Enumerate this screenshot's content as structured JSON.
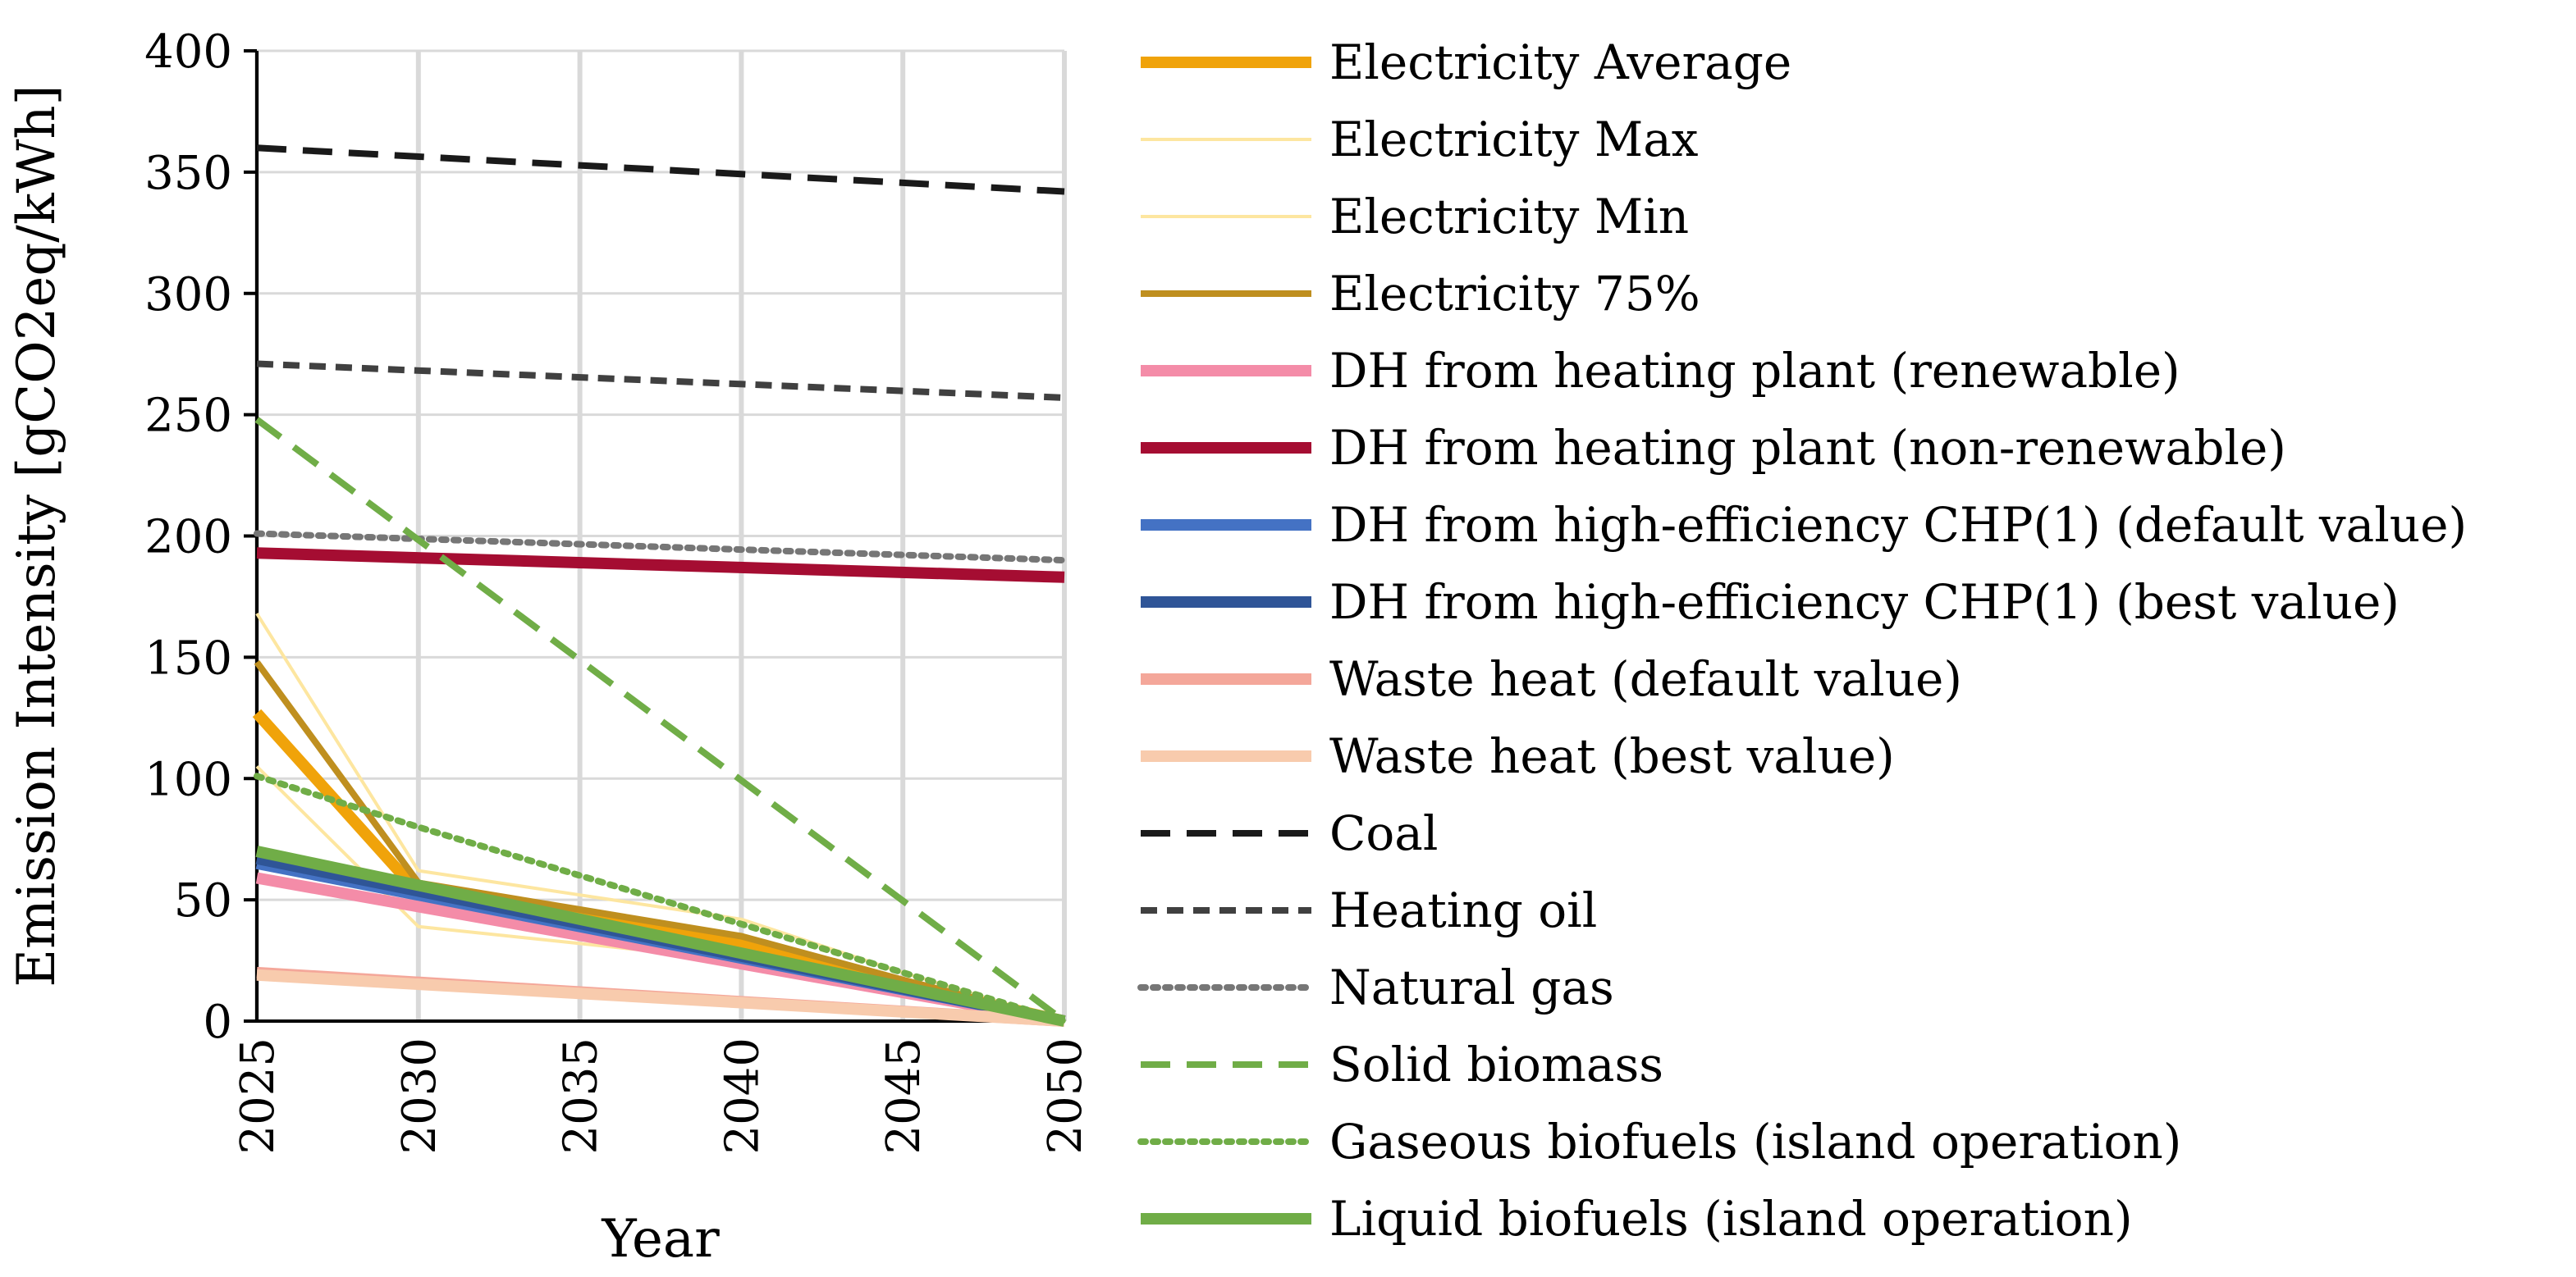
{
  "chart_data": {
    "type": "line",
    "title": "",
    "xlabel": "Year",
    "ylabel": "Emission Intensity [gCO2eq/kWh]",
    "x": [
      2025,
      2030,
      2035,
      2040,
      2045,
      2050
    ],
    "x_tick_labels": [
      "2025",
      "2030",
      "2035",
      "2040",
      "2045",
      "2050"
    ],
    "y_ticks": [
      0,
      50,
      100,
      150,
      200,
      250,
      300,
      350,
      400
    ],
    "y_tick_labels": [
      "0",
      "50",
      "100",
      "150",
      "200",
      "250",
      "300",
      "350",
      "400"
    ],
    "ylim": [
      0,
      400
    ],
    "xlim": [
      2025,
      2050
    ],
    "grid": "vertical and horizontal",
    "legend_position": "right",
    "series": [
      {
        "name": "Electricity Average",
        "color": "#F0A30A",
        "style": "solid",
        "weight": "thick",
        "points": [
          [
            2025,
            127
          ],
          [
            2030,
            53
          ],
          [
            2035,
            43
          ],
          [
            2040,
            32
          ],
          [
            2045,
            15
          ],
          [
            2050,
            0
          ]
        ]
      },
      {
        "name": "Electricity Max",
        "color": "#FDE6A0",
        "style": "solid",
        "weight": "thin",
        "points": [
          [
            2025,
            168
          ],
          [
            2030,
            62
          ],
          [
            2035,
            52
          ],
          [
            2040,
            42
          ],
          [
            2045,
            20
          ],
          [
            2050,
            0
          ]
        ]
      },
      {
        "name": "Electricity Min",
        "color": "#FDE6A0",
        "style": "solid",
        "weight": "thin",
        "points": [
          [
            2025,
            105
          ],
          [
            2030,
            39
          ],
          [
            2035,
            32
          ],
          [
            2040,
            25
          ],
          [
            2045,
            12
          ],
          [
            2050,
            0
          ]
        ]
      },
      {
        "name": "Electricity 75%",
        "color": "#BF8F1F",
        "style": "solid",
        "weight": "medium",
        "points": [
          [
            2025,
            148
          ],
          [
            2030,
            57
          ],
          [
            2035,
            46
          ],
          [
            2040,
            35
          ],
          [
            2045,
            17
          ],
          [
            2050,
            0
          ]
        ]
      },
      {
        "name": "DH from heating plant (renewable)",
        "color": "#F48CA8",
        "style": "solid",
        "weight": "thick",
        "points": [
          [
            2025,
            59
          ],
          [
            2050,
            0
          ]
        ]
      },
      {
        "name": "DH from heating plant (non-renewable)",
        "color": "#A50D32",
        "style": "solid",
        "weight": "thick",
        "points": [
          [
            2025,
            193
          ],
          [
            2050,
            183
          ]
        ]
      },
      {
        "name": "DH from high-efficiency CHP(1) (default value)",
        "color": "#4472C4",
        "style": "solid",
        "weight": "thick",
        "points": [
          [
            2025,
            65
          ],
          [
            2050,
            0
          ]
        ]
      },
      {
        "name": "DH from high-efficiency CHP(1) (best value)",
        "color": "#2F5597",
        "style": "solid",
        "weight": "thick",
        "points": [
          [
            2025,
            67
          ],
          [
            2050,
            0
          ]
        ]
      },
      {
        "name": "Waste heat (default value)",
        "color": "#F4A79A",
        "style": "solid",
        "weight": "thick",
        "points": [
          [
            2025,
            20
          ],
          [
            2050,
            0
          ]
        ]
      },
      {
        "name": "Waste heat (best value)",
        "color": "#F8CBAD",
        "style": "solid",
        "weight": "thick",
        "points": [
          [
            2025,
            19
          ],
          [
            2050,
            0
          ]
        ]
      },
      {
        "name": "Coal",
        "color": "#1A1A1A",
        "style": "long-dash",
        "weight": "medium",
        "points": [
          [
            2025,
            360
          ],
          [
            2050,
            342
          ]
        ]
      },
      {
        "name": "Heating oil",
        "color": "#404040",
        "style": "dash",
        "weight": "medium",
        "points": [
          [
            2025,
            271
          ],
          [
            2050,
            257
          ]
        ]
      },
      {
        "name": "Natural gas",
        "color": "#767676",
        "style": "dot",
        "weight": "medium",
        "points": [
          [
            2025,
            201
          ],
          [
            2050,
            190
          ]
        ]
      },
      {
        "name": "Solid biomass",
        "color": "#70AD47",
        "style": "long-dash",
        "weight": "medium",
        "points": [
          [
            2025,
            248
          ],
          [
            2050,
            0
          ]
        ]
      },
      {
        "name": "Gaseous biofuels (island operation)",
        "color": "#70AD47",
        "style": "dot",
        "weight": "medium",
        "points": [
          [
            2025,
            101
          ],
          [
            2030,
            80
          ],
          [
            2035,
            60
          ],
          [
            2040,
            40
          ],
          [
            2045,
            20
          ],
          [
            2050,
            0
          ]
        ]
      },
      {
        "name": "Liquid biofuels (island operation)",
        "color": "#70AD47",
        "style": "solid",
        "weight": "thick",
        "points": [
          [
            2025,
            70
          ],
          [
            2050,
            0
          ]
        ]
      }
    ]
  }
}
